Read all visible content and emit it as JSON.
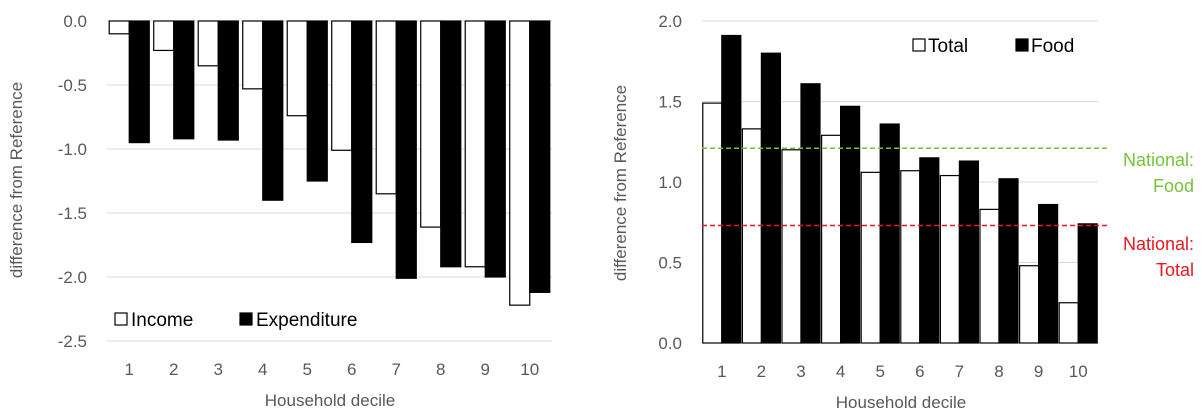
{
  "chart_data": [
    {
      "type": "bar",
      "xlabel": "Household decile",
      "ylabel": "difference from Reference",
      "ylim": [
        -2.5,
        0.0
      ],
      "yticks": [
        "0.0",
        "-0.5",
        "-1.0",
        "-1.5",
        "-2.0",
        "-2.5"
      ],
      "categories": [
        "1",
        "2",
        "3",
        "4",
        "5",
        "6",
        "7",
        "8",
        "9",
        "10"
      ],
      "grid": true,
      "legend_position": "bottom-left",
      "series": [
        {
          "name": "Income",
          "fill": "#ffffff",
          "stroke": "#000000",
          "values": [
            -0.1,
            -0.23,
            -0.35,
            -0.53,
            -0.74,
            -1.01,
            -1.35,
            -1.61,
            -1.92,
            -2.22
          ]
        },
        {
          "name": "Expenditure",
          "fill": "#000000",
          "stroke": "#000000",
          "values": [
            -0.95,
            -0.92,
            -0.93,
            -1.4,
            -1.25,
            -1.73,
            -2.01,
            -1.92,
            -2.0,
            -2.12
          ]
        }
      ]
    },
    {
      "type": "bar",
      "xlabel": "Household decile",
      "ylabel": "difference from Reference",
      "ylim": [
        0.0,
        2.0
      ],
      "yticks": [
        "0.0",
        "0.5",
        "1.0",
        "1.5",
        "2.0"
      ],
      "categories": [
        "1",
        "2",
        "3",
        "4",
        "5",
        "6",
        "7",
        "8",
        "9",
        "10"
      ],
      "grid": true,
      "legend_position": "top-right",
      "series": [
        {
          "name": "Total",
          "fill": "#ffffff",
          "stroke": "#000000",
          "values": [
            1.49,
            1.33,
            1.2,
            1.29,
            1.06,
            1.07,
            1.04,
            0.83,
            0.48,
            0.25
          ]
        },
        {
          "name": "Food",
          "fill": "#000000",
          "stroke": "#000000",
          "values": [
            1.91,
            1.8,
            1.61,
            1.47,
            1.36,
            1.15,
            1.13,
            1.02,
            0.86,
            0.74
          ]
        }
      ],
      "reference_lines": [
        {
          "label_line1": "National:",
          "label_line2": "Food",
          "value": 1.21,
          "color": "#77c23b"
        },
        {
          "label_line1": "National:",
          "label_line2": "Total",
          "value": 0.73,
          "color": "#e8171d"
        }
      ]
    }
  ]
}
